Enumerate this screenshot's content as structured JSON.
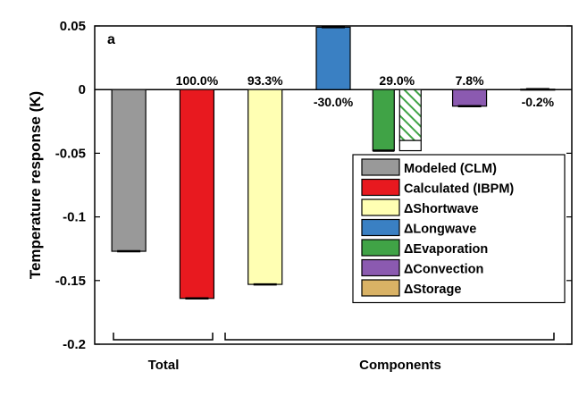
{
  "chart_data": {
    "type": "bar",
    "panel_label": "a",
    "ylabel": "Temperature response (K)",
    "ylim": [
      -0.2,
      0.05
    ],
    "yticks": [
      0.05,
      0,
      -0.05,
      -0.1,
      -0.15,
      -0.2
    ],
    "ytick_labels": [
      "0.05",
      "0",
      "-0.05",
      "-0.1",
      "-0.15",
      "-0.2"
    ],
    "bars": [
      {
        "name": "Modeled (CLM)",
        "value": -0.127,
        "error": 0.001,
        "color": "#999999",
        "pct_label": ""
      },
      {
        "name": "Calculated (IBPM)",
        "value": -0.164,
        "error": 0.001,
        "color": "#e8191f",
        "pct_label": "100.0%"
      },
      {
        "name": "Shortwave",
        "value": -0.153,
        "error": 0.001,
        "color": "#ffffb3",
        "pct_label": "93.3%"
      },
      {
        "name": "Longwave",
        "value": 0.049,
        "error": 0.0005,
        "color": "#3a80c3",
        "pct_label": "-30.0%"
      },
      {
        "name": "Evaporation",
        "value": -0.048,
        "error": 0.0005,
        "color": "#40a346",
        "pct_label": "29.0%",
        "hatched_value": -0.048,
        "hatched_inner": -0.04
      },
      {
        "name": "Convection",
        "value": -0.013,
        "error": 0.0005,
        "color": "#8b5ab0",
        "pct_label": "7.8%"
      },
      {
        "name": "Storage",
        "value": 0.0003,
        "error": 0.0002,
        "color": "#d9b265",
        "pct_label": "-0.2%"
      }
    ],
    "legend": [
      {
        "label": "Modeled (CLM)",
        "color": "#999999"
      },
      {
        "label": "Calculated (IBPM)",
        "color": "#e8191f"
      },
      {
        "label": "ΔShortwave",
        "color": "#ffffb3"
      },
      {
        "label": "ΔLongwave",
        "color": "#3a80c3"
      },
      {
        "label": "ΔEvaporation",
        "color": "#40a346"
      },
      {
        "label": "ΔConvection",
        "color": "#8b5ab0"
      },
      {
        "label": "ΔStorage",
        "color": "#d9b265"
      }
    ],
    "legend_placement": "lower-right",
    "groups": [
      {
        "label": "Total"
      },
      {
        "label": "Components"
      }
    ],
    "grid": false
  }
}
